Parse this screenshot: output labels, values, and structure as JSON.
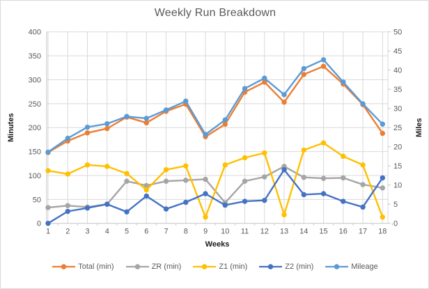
{
  "window": {
    "background": "#ffffff",
    "border_color": "#d9d9d9"
  },
  "chart_data": {
    "type": "line",
    "title": "Weekly Run Breakdown",
    "xlabel": "Weeks",
    "left_axis": {
      "label": "Minutes",
      "min": 0,
      "max": 400,
      "step": 50
    },
    "right_axis": {
      "label": "Miles",
      "min": 0,
      "max": 50,
      "step": 5
    },
    "grid": true,
    "legend_position": "bottom",
    "style": {
      "gridline_color": "#d9d9d9",
      "axis_line_color": "#c6c6c6",
      "tick_label_color": "#595959",
      "title_color": "#595959",
      "axis_title_color": "#1a1a1a"
    },
    "categories": [
      "1",
      "2",
      "3",
      "4",
      "5",
      "6",
      "7",
      "8",
      "9",
      "10",
      "11",
      "12",
      "13",
      "14",
      "15",
      "16",
      "17",
      "18"
    ],
    "series": [
      {
        "name": "Total (min)",
        "axis": "left",
        "color": "#ED7D31",
        "values": [
          148,
          172,
          189,
          198,
          222,
          210,
          234,
          249,
          181,
          207,
          274,
          295,
          253,
          311,
          328,
          291,
          248,
          188
        ]
      },
      {
        "name": "ZR (min)",
        "axis": "left",
        "color": "#A5A5A5",
        "values": [
          33,
          37,
          34,
          40,
          88,
          79,
          88,
          90,
          92,
          43,
          88,
          97,
          119,
          96,
          94,
          95,
          81,
          74
        ]
      },
      {
        "name": "Z1 (min)",
        "axis": "left",
        "color": "#FFC000",
        "values": [
          110,
          103,
          122,
          119,
          104,
          70,
          112,
          120,
          13,
          122,
          137,
          147,
          18,
          153,
          168,
          140,
          122,
          13
        ]
      },
      {
        "name": "Z2 (min)",
        "axis": "left",
        "color": "#4472C4",
        "values": [
          0,
          25,
          32,
          40,
          24,
          57,
          30,
          44,
          62,
          38,
          46,
          48,
          112,
          60,
          62,
          46,
          34,
          95
        ]
      },
      {
        "name": "Mileage",
        "axis": "right",
        "color": "#5B9BD5",
        "values": [
          18.6,
          22.2,
          25.1,
          26.0,
          27.9,
          27.4,
          29.6,
          31.9,
          23.2,
          27.0,
          35.2,
          37.9,
          33.6,
          40.4,
          42.7,
          36.9,
          31.2,
          25.9
        ]
      }
    ]
  }
}
